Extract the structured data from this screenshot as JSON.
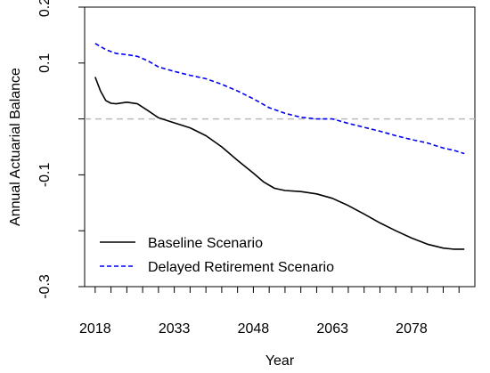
{
  "chart_data": {
    "type": "line",
    "title": "",
    "xlabel": "Year",
    "ylabel": "Annual Actuarial Balance",
    "xlim": [
      2016,
      2090
    ],
    "ylim": [
      -0.3,
      0.2
    ],
    "x_ticks": [
      2018,
      2033,
      2048,
      2063,
      2078
    ],
    "x_minor_ticks": [
      2018,
      2021,
      2024,
      2027,
      2030,
      2033,
      2036,
      2039,
      2042,
      2045,
      2048,
      2051,
      2054,
      2057,
      2060,
      2063,
      2066,
      2069,
      2072,
      2075,
      2078,
      2081,
      2084,
      2087
    ],
    "y_ticks": [
      0.2,
      0.1,
      -0.1,
      -0.3
    ],
    "y_minor_ticks": [
      0.2,
      0.1,
      0.0,
      -0.1,
      -0.2,
      -0.3
    ],
    "reference_line": {
      "y": 0.0,
      "color": "#bbbbbb",
      "style": "dashed"
    },
    "legend_position": "bottom-left",
    "series": [
      {
        "name": "Baseline Scenario",
        "color": "#000000",
        "style": "solid",
        "points": [
          [
            2018,
            0.075
          ],
          [
            2019,
            0.05
          ],
          [
            2020,
            0.033
          ],
          [
            2021,
            0.028
          ],
          [
            2022,
            0.027
          ],
          [
            2024,
            0.03
          ],
          [
            2026,
            0.027
          ],
          [
            2028,
            0.015
          ],
          [
            2030,
            0.002
          ],
          [
            2033,
            -0.007
          ],
          [
            2036,
            -0.016
          ],
          [
            2039,
            -0.03
          ],
          [
            2042,
            -0.05
          ],
          [
            2045,
            -0.074
          ],
          [
            2048,
            -0.097
          ],
          [
            2050,
            -0.113
          ],
          [
            2052,
            -0.124
          ],
          [
            2054,
            -0.128
          ],
          [
            2057,
            -0.13
          ],
          [
            2060,
            -0.134
          ],
          [
            2063,
            -0.142
          ],
          [
            2066,
            -0.155
          ],
          [
            2069,
            -0.17
          ],
          [
            2072,
            -0.186
          ],
          [
            2075,
            -0.2
          ],
          [
            2078,
            -0.213
          ],
          [
            2081,
            -0.224
          ],
          [
            2084,
            -0.231
          ],
          [
            2086,
            -0.233
          ],
          [
            2088,
            -0.233
          ]
        ]
      },
      {
        "name": "Delayed Retirement Scenario",
        "color": "#0000ee",
        "style": "dashed",
        "points": [
          [
            2018,
            0.135
          ],
          [
            2020,
            0.124
          ],
          [
            2022,
            0.117
          ],
          [
            2024,
            0.115
          ],
          [
            2026,
            0.112
          ],
          [
            2028,
            0.104
          ],
          [
            2030,
            0.093
          ],
          [
            2033,
            0.085
          ],
          [
            2036,
            0.078
          ],
          [
            2039,
            0.072
          ],
          [
            2042,
            0.062
          ],
          [
            2045,
            0.05
          ],
          [
            2048,
            0.036
          ],
          [
            2051,
            0.02
          ],
          [
            2054,
            0.01
          ],
          [
            2057,
            0.003
          ],
          [
            2060,
            0.0
          ],
          [
            2063,
            0.0
          ],
          [
            2066,
            -0.008
          ],
          [
            2069,
            -0.015
          ],
          [
            2072,
            -0.022
          ],
          [
            2075,
            -0.03
          ],
          [
            2078,
            -0.037
          ],
          [
            2081,
            -0.043
          ],
          [
            2084,
            -0.052
          ],
          [
            2086,
            -0.056
          ],
          [
            2088,
            -0.062
          ]
        ]
      }
    ]
  }
}
